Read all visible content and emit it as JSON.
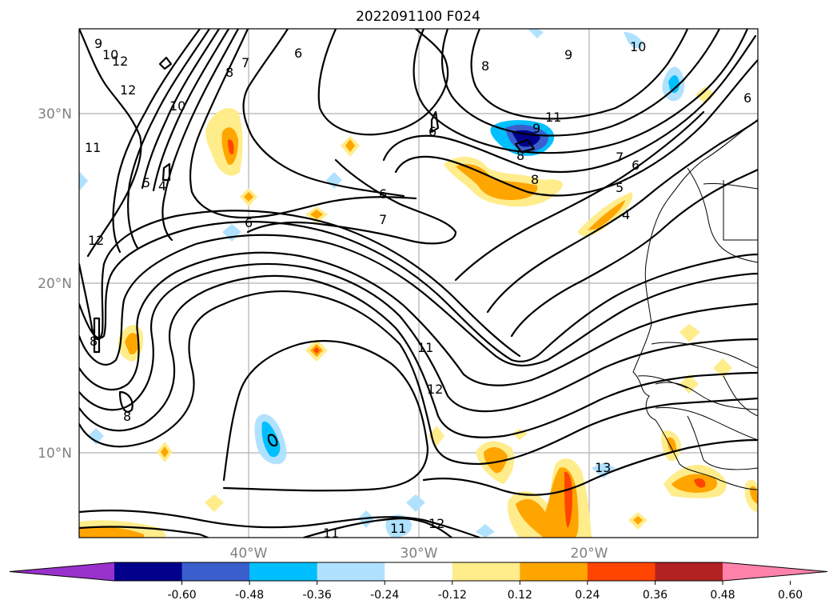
{
  "title": "2022091100 F024",
  "lat_labels": [
    "30°N",
    "20°N",
    "10°N"
  ],
  "lon_labels": [
    "40°W",
    "30°W",
    "20°W"
  ],
  "contour_labels": [
    "9",
    "10",
    "12",
    "12",
    "10",
    "8",
    "7",
    "6",
    "8",
    "9",
    "10",
    "11",
    "9",
    "8",
    "8",
    "7",
    "6",
    "5",
    "4",
    "5",
    "4",
    "11",
    "6",
    "6",
    "7",
    "6",
    "8",
    "12",
    "8",
    "11",
    "12",
    "13",
    "11",
    "11",
    "12",
    "6"
  ],
  "colorbar": {
    "ticks": [
      "-0.60",
      "-0.48",
      "-0.36",
      "-0.24",
      "-0.12",
      "0.12",
      "0.24",
      "0.36",
      "0.48",
      "0.60"
    ],
    "colors": [
      "#9932CC",
      "#00008B",
      "#3A5FCD",
      "#00BFFF",
      "#B0E2FF",
      "#FFFFFF",
      "#FFEC8B",
      "#FFA500",
      "#FF4500",
      "#B22222",
      "#FF82AB"
    ]
  }
}
